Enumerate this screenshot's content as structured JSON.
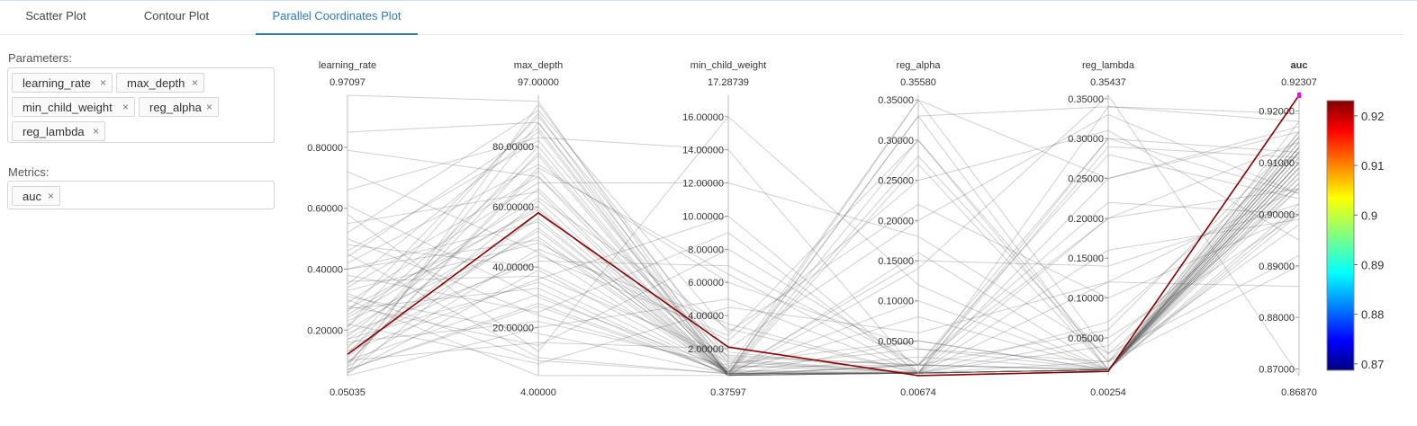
{
  "tabs": [
    {
      "label": "Scatter Plot",
      "active": false
    },
    {
      "label": "Contour Plot",
      "active": false
    },
    {
      "label": "Parallel Coordinates Plot",
      "active": true
    }
  ],
  "parameters": {
    "label": "Parameters:",
    "tags": [
      "learning_rate",
      "max_depth",
      "min_child_weight",
      "reg_alpha",
      "reg_lambda"
    ]
  },
  "metrics": {
    "label": "Metrics:",
    "tags": [
      "auc"
    ]
  },
  "remove_glyph": "×",
  "colors": {
    "accent": "#2a7ac0",
    "highlight_line": "#8b0000",
    "metric_title": "#0a7a0a",
    "selected_marker": "#ff00ff",
    "background_lines": "#555555"
  },
  "chart_data": {
    "type": "parallel_coordinates",
    "axes": [
      {
        "name": "learning_rate",
        "min": 0.05035,
        "max": 0.97097,
        "top_label": "0.97097",
        "bottom_label": "0.05035",
        "ticks": [
          0.2,
          0.4,
          0.6,
          0.8
        ],
        "tick_labels": [
          "0.20000",
          "0.40000",
          "0.60000",
          "0.80000"
        ]
      },
      {
        "name": "max_depth",
        "min": 4,
        "max": 97,
        "top_label": "97.00000",
        "bottom_label": "4.00000",
        "ticks": [
          20,
          40,
          60,
          80
        ],
        "tick_labels": [
          "20.00000",
          "40.00000",
          "60.00000",
          "80.00000"
        ]
      },
      {
        "name": "min_child_weight",
        "min": 0.37597,
        "max": 17.28739,
        "top_label": "17.28739",
        "bottom_label": "0.37597",
        "ticks": [
          2,
          4,
          6,
          8,
          10,
          12,
          14,
          16
        ],
        "tick_labels": [
          "2.00000",
          "4.00000",
          "6.00000",
          "8.00000",
          "10.00000",
          "12.00000",
          "14.00000",
          "16.00000"
        ]
      },
      {
        "name": "reg_alpha",
        "min": 0.00674,
        "max": 0.3558,
        "top_label": "0.35580",
        "bottom_label": "0.00674",
        "ticks": [
          0.05,
          0.1,
          0.15,
          0.2,
          0.25,
          0.3,
          0.35
        ],
        "tick_labels": [
          "0.05000",
          "0.10000",
          "0.15000",
          "0.20000",
          "0.25000",
          "0.30000",
          "0.35000"
        ]
      },
      {
        "name": "reg_lambda",
        "min": 0.00254,
        "max": 0.35437,
        "top_label": "0.35437",
        "bottom_label": "0.00254",
        "ticks": [
          0.05,
          0.1,
          0.15,
          0.2,
          0.25,
          0.3,
          0.35
        ],
        "tick_labels": [
          "0.05000",
          "0.10000",
          "0.15000",
          "0.20000",
          "0.25000",
          "0.30000",
          "0.35000"
        ]
      },
      {
        "name": "auc",
        "min": 0.8687,
        "max": 0.92307,
        "top_label": "0.92307",
        "bottom_label": "0.86870",
        "is_metric": true,
        "ticks": [
          0.87,
          0.88,
          0.89,
          0.9,
          0.91,
          0.92
        ],
        "tick_labels": [
          "0.87000",
          "0.88000",
          "0.89000",
          "0.90000",
          "0.91000",
          "0.92000"
        ]
      }
    ],
    "highlighted_trial": [
      0.12,
      58,
      2.1,
      0.0068,
      0.008,
      0.92307
    ],
    "trials": [
      [
        0.97097,
        95,
        0.6,
        0.33,
        0.34,
        0.9195
      ],
      [
        0.85,
        88,
        0.4,
        0.05,
        0.01,
        0.905
      ],
      [
        0.79,
        70,
        1.5,
        0.02,
        0.3,
        0.912
      ],
      [
        0.72,
        45,
        0.5,
        0.28,
        0.02,
        0.898
      ],
      [
        0.66,
        83,
        14,
        0.01,
        0.05,
        0.9
      ],
      [
        0.61,
        30,
        0.8,
        0.35,
        0.25,
        0.916
      ],
      [
        0.58,
        12,
        16,
        0.12,
        0.01,
        0.91
      ],
      [
        0.55,
        65,
        0.4,
        0.01,
        0.2,
        0.905
      ],
      [
        0.52,
        92,
        3,
        0.22,
        0.1,
        0.9
      ],
      [
        0.48,
        40,
        1.2,
        0.01,
        0.34,
        0.918
      ],
      [
        0.45,
        10,
        0.5,
        0.3,
        0.02,
        0.89
      ],
      [
        0.42,
        74,
        6,
        0.04,
        0.01,
        0.91
      ],
      [
        0.4,
        55,
        0.6,
        0.15,
        0.14,
        0.902
      ],
      [
        0.38,
        25,
        9,
        0.01,
        0.01,
        0.908
      ],
      [
        0.35,
        85,
        0.4,
        0.02,
        0.06,
        0.915
      ],
      [
        0.33,
        48,
        2.5,
        0.25,
        0.31,
        0.895
      ],
      [
        0.31,
        18,
        0.5,
        0.01,
        0.01,
        0.912
      ],
      [
        0.29,
        68,
        12,
        0.18,
        0.03,
        0.905
      ],
      [
        0.27,
        33,
        0.4,
        0.02,
        0.22,
        0.9
      ],
      [
        0.26,
        90,
        1.8,
        0.01,
        0.01,
        0.913
      ],
      [
        0.24,
        60,
        0.5,
        0.33,
        0.01,
        0.909
      ],
      [
        0.22,
        8,
        4.5,
        0.06,
        0.12,
        0.886
      ],
      [
        0.21,
        77,
        0.4,
        0.01,
        0.01,
        0.914
      ],
      [
        0.19,
        42,
        7,
        0.02,
        0.28,
        0.903
      ],
      [
        0.17,
        52,
        0.6,
        0.1,
        0.01,
        0.911
      ],
      [
        0.16,
        22,
        1,
        0.01,
        0.04,
        0.907
      ],
      [
        0.14,
        80,
        0.4,
        0.27,
        0.01,
        0.916
      ],
      [
        0.13,
        36,
        10,
        0.01,
        0.16,
        0.899
      ],
      [
        0.11,
        62,
        0.5,
        0.03,
        0.01,
        0.912
      ],
      [
        0.1,
        15,
        2,
        0.2,
        0.33,
        0.904
      ],
      [
        0.09,
        72,
        0.4,
        0.01,
        0.02,
        0.915
      ],
      [
        0.08,
        46,
        3.5,
        0.01,
        0.01,
        0.909
      ],
      [
        0.07,
        28,
        0.5,
        0.08,
        0.01,
        0.906
      ],
      [
        0.06,
        94,
        1.4,
        0.01,
        0.25,
        0.917
      ],
      [
        0.055,
        58,
        0.45,
        0.02,
        0.01,
        0.913
      ],
      [
        0.05035,
        20,
        5,
        0.01,
        0.01,
        0.901
      ],
      [
        0.3,
        4,
        0.4,
        0.14,
        0.35437,
        0.8687
      ],
      [
        0.18,
        66,
        0.7,
        0.01,
        0.01,
        0.91
      ],
      [
        0.23,
        50,
        0.5,
        0.01,
        0.07,
        0.912
      ],
      [
        0.36,
        37,
        1.6,
        0.02,
        0.01,
        0.908
      ],
      [
        0.44,
        86,
        0.4,
        0.01,
        0.01,
        0.914
      ],
      [
        0.5,
        24,
        0.8,
        0.04,
        0.02,
        0.906
      ],
      [
        0.12,
        78,
        0.5,
        0.01,
        0.01,
        0.915
      ],
      [
        0.15,
        44,
        2.8,
        0.3,
        0.01,
        0.9
      ],
      [
        0.2,
        56,
        0.4,
        0.01,
        0.29,
        0.911
      ],
      [
        0.28,
        14,
        8,
        0.02,
        0.01,
        0.902
      ],
      [
        0.34,
        70,
        0.5,
        0.01,
        0.01,
        0.913
      ],
      [
        0.06,
        39,
        0.6,
        0.01,
        0.01,
        0.909
      ],
      [
        0.08,
        88,
        1.1,
        0.05,
        0.01,
        0.916
      ],
      [
        0.1,
        31,
        0.4,
        0.01,
        0.12,
        0.905
      ],
      [
        0.25,
        63,
        3.2,
        0.01,
        0.01,
        0.912
      ],
      [
        0.32,
        9,
        0.5,
        0.35,
        0.03,
        0.892
      ],
      [
        0.4,
        49,
        0.4,
        0.01,
        0.01,
        0.91
      ],
      [
        0.46,
        82,
        0.9,
        0.02,
        0.2,
        0.914
      ],
      [
        0.07,
        27,
        0.5,
        0.01,
        0.01,
        0.907
      ],
      [
        0.09,
        73,
        6.5,
        0.01,
        0.01,
        0.913
      ],
      [
        0.13,
        53,
        0.4,
        0.16,
        0.01,
        0.911
      ],
      [
        0.17,
        35,
        0.6,
        0.01,
        0.3,
        0.904
      ],
      [
        0.21,
        91,
        0.5,
        0.01,
        0.01,
        0.918
      ],
      [
        0.27,
        59,
        1.3,
        0.01,
        0.01,
        0.912
      ]
    ],
    "colorbar": {
      "min": 0.8687,
      "max": 0.92307,
      "ticks": [
        0.87,
        0.88,
        0.89,
        0.9,
        0.91,
        0.92
      ],
      "tick_labels": [
        "0.87",
        "0.88",
        "0.89",
        "0.9",
        "0.91",
        "0.92"
      ]
    }
  }
}
